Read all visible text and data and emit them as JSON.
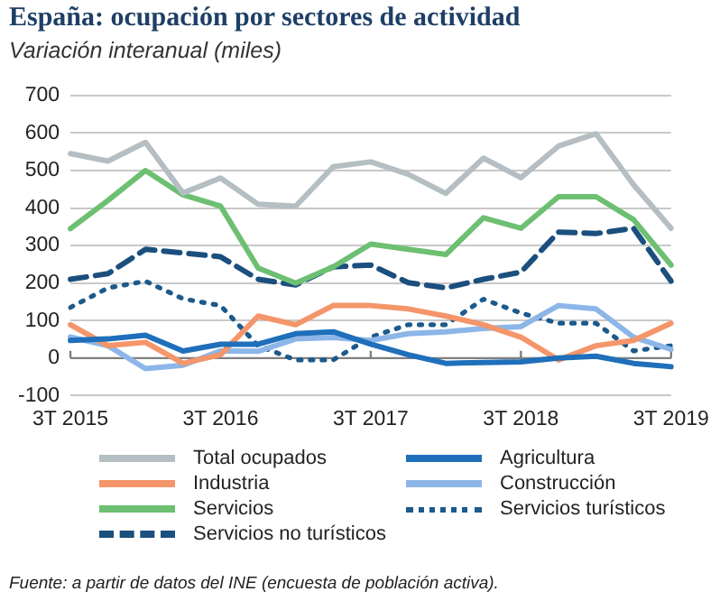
{
  "chart_data": {
    "type": "line",
    "title": "España: ocupación por sectores de actividad",
    "subtitle": "Variación interanual (miles)",
    "categories": [
      "3T 2015",
      null,
      null,
      null,
      "3T 2016",
      null,
      null,
      null,
      "3T 2017",
      null,
      null,
      null,
      "3T 2018",
      null,
      null,
      null,
      "3T 2019"
    ],
    "ylim": [
      -100,
      700
    ],
    "yticks": [
      -100,
      0,
      100,
      200,
      300,
      400,
      500,
      600,
      700
    ],
    "grid": "y",
    "legend": "bottom",
    "marker": "none",
    "ref_lines": [
      {
        "axis": "y",
        "value": 0,
        "color": "#7f7f7f"
      }
    ],
    "series": [
      {
        "name": "Total ocupados",
        "color": "#b4bec3",
        "line_style": "solid",
        "values": [
          545,
          525,
          575,
          440,
          480,
          410,
          405,
          510,
          523,
          490,
          439,
          533,
          481,
          565,
          598,
          462,
          346
        ]
      },
      {
        "name": "Agricultura",
        "color": "#1f6fba",
        "line_style": "solid",
        "values": [
          47,
          51,
          61,
          19,
          37,
          37,
          65,
          70,
          37,
          9,
          -14,
          -12,
          -10,
          0,
          5,
          -14,
          -23
        ]
      },
      {
        "name": "Industria",
        "color": "#f4956a",
        "line_style": "solid",
        "values": [
          89,
          33,
          42,
          -14,
          9,
          112,
          89,
          140,
          140,
          131,
          112,
          89,
          56,
          -5,
          33,
          47,
          93
        ]
      },
      {
        "name": "Construcción",
        "color": "#8db6e8",
        "line_style": "solid",
        "values": [
          56,
          33,
          -28,
          -19,
          19,
          18,
          51,
          55,
          47,
          65,
          70,
          79,
          84,
          140,
          131,
          56,
          23
        ]
      },
      {
        "name": "Servicios",
        "color": "#6dbf72",
        "line_style": "solid",
        "values": [
          345,
          420,
          500,
          435,
          405,
          240,
          200,
          243,
          304,
          290,
          276,
          374,
          346,
          430,
          430,
          369,
          248
        ]
      },
      {
        "name": "Servicios  turísticos",
        "color": "#1b5a8c",
        "line_style": "dotted",
        "values": [
          135,
          187,
          205,
          158,
          140,
          33,
          -5,
          -5,
          56,
          89,
          89,
          157,
          120,
          93,
          93,
          19,
          33
        ]
      },
      {
        "name": "Servicios no turísticos",
        "color": "#1b4f7e",
        "line_style": "dashed",
        "values": [
          210,
          225,
          290,
          280,
          270,
          210,
          195,
          243,
          248,
          201,
          187,
          210,
          229,
          336,
          332,
          346,
          205
        ]
      }
    ],
    "annotations": [
      "Fuente: a partir de datos del INE (encuesta de población activa)."
    ]
  }
}
